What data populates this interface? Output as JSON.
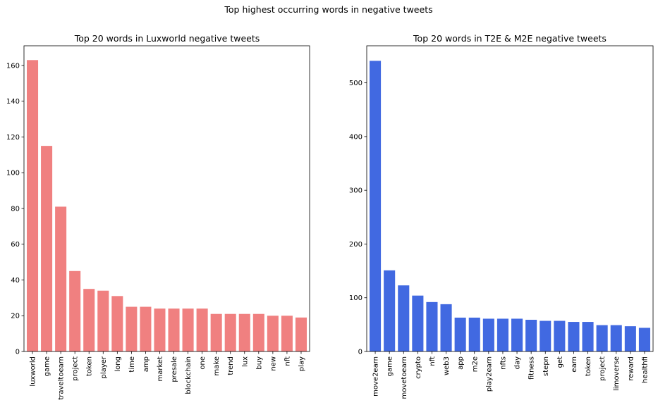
{
  "figure": {
    "suptitle": "Top highest occurring words in negative tweets"
  },
  "chart_data": [
    {
      "type": "bar",
      "title": "Top 20 words in Luxworld negative tweets",
      "xlabel": "",
      "ylabel": "",
      "color": "#f08080",
      "ylim": [
        0,
        171
      ],
      "yticks": [
        0,
        20,
        40,
        60,
        80,
        100,
        120,
        140,
        160
      ],
      "categories": [
        "luxworld",
        "game",
        "traveltoearn",
        "project",
        "token",
        "player",
        "long",
        "time",
        "amp",
        "market",
        "presale",
        "blockchain",
        "one",
        "make",
        "trend",
        "lux",
        "buy",
        "new",
        "nft",
        "play"
      ],
      "values": [
        163,
        115,
        81,
        45,
        35,
        34,
        31,
        25,
        25,
        24,
        24,
        24,
        24,
        21,
        21,
        21,
        21,
        20,
        20,
        19
      ]
    },
    {
      "type": "bar",
      "title": "Top 20 words in T2E & M2E negative tweets",
      "xlabel": "",
      "ylabel": "",
      "color": "#4169e1",
      "ylim": [
        0,
        569
      ],
      "yticks": [
        0,
        100,
        200,
        300,
        400,
        500
      ],
      "categories": [
        "move2earn",
        "game",
        "movetoearn",
        "crypto",
        "nft",
        "web3",
        "app",
        "m2e",
        "play2earn",
        "nfts",
        "day",
        "fitness",
        "stepn",
        "get",
        "earn",
        "token",
        "project",
        "limoverse",
        "reward",
        "healthfi"
      ],
      "values": [
        541,
        151,
        123,
        104,
        92,
        88,
        63,
        63,
        61,
        61,
        61,
        59,
        57,
        57,
        55,
        55,
        49,
        49,
        47,
        44
      ]
    }
  ]
}
